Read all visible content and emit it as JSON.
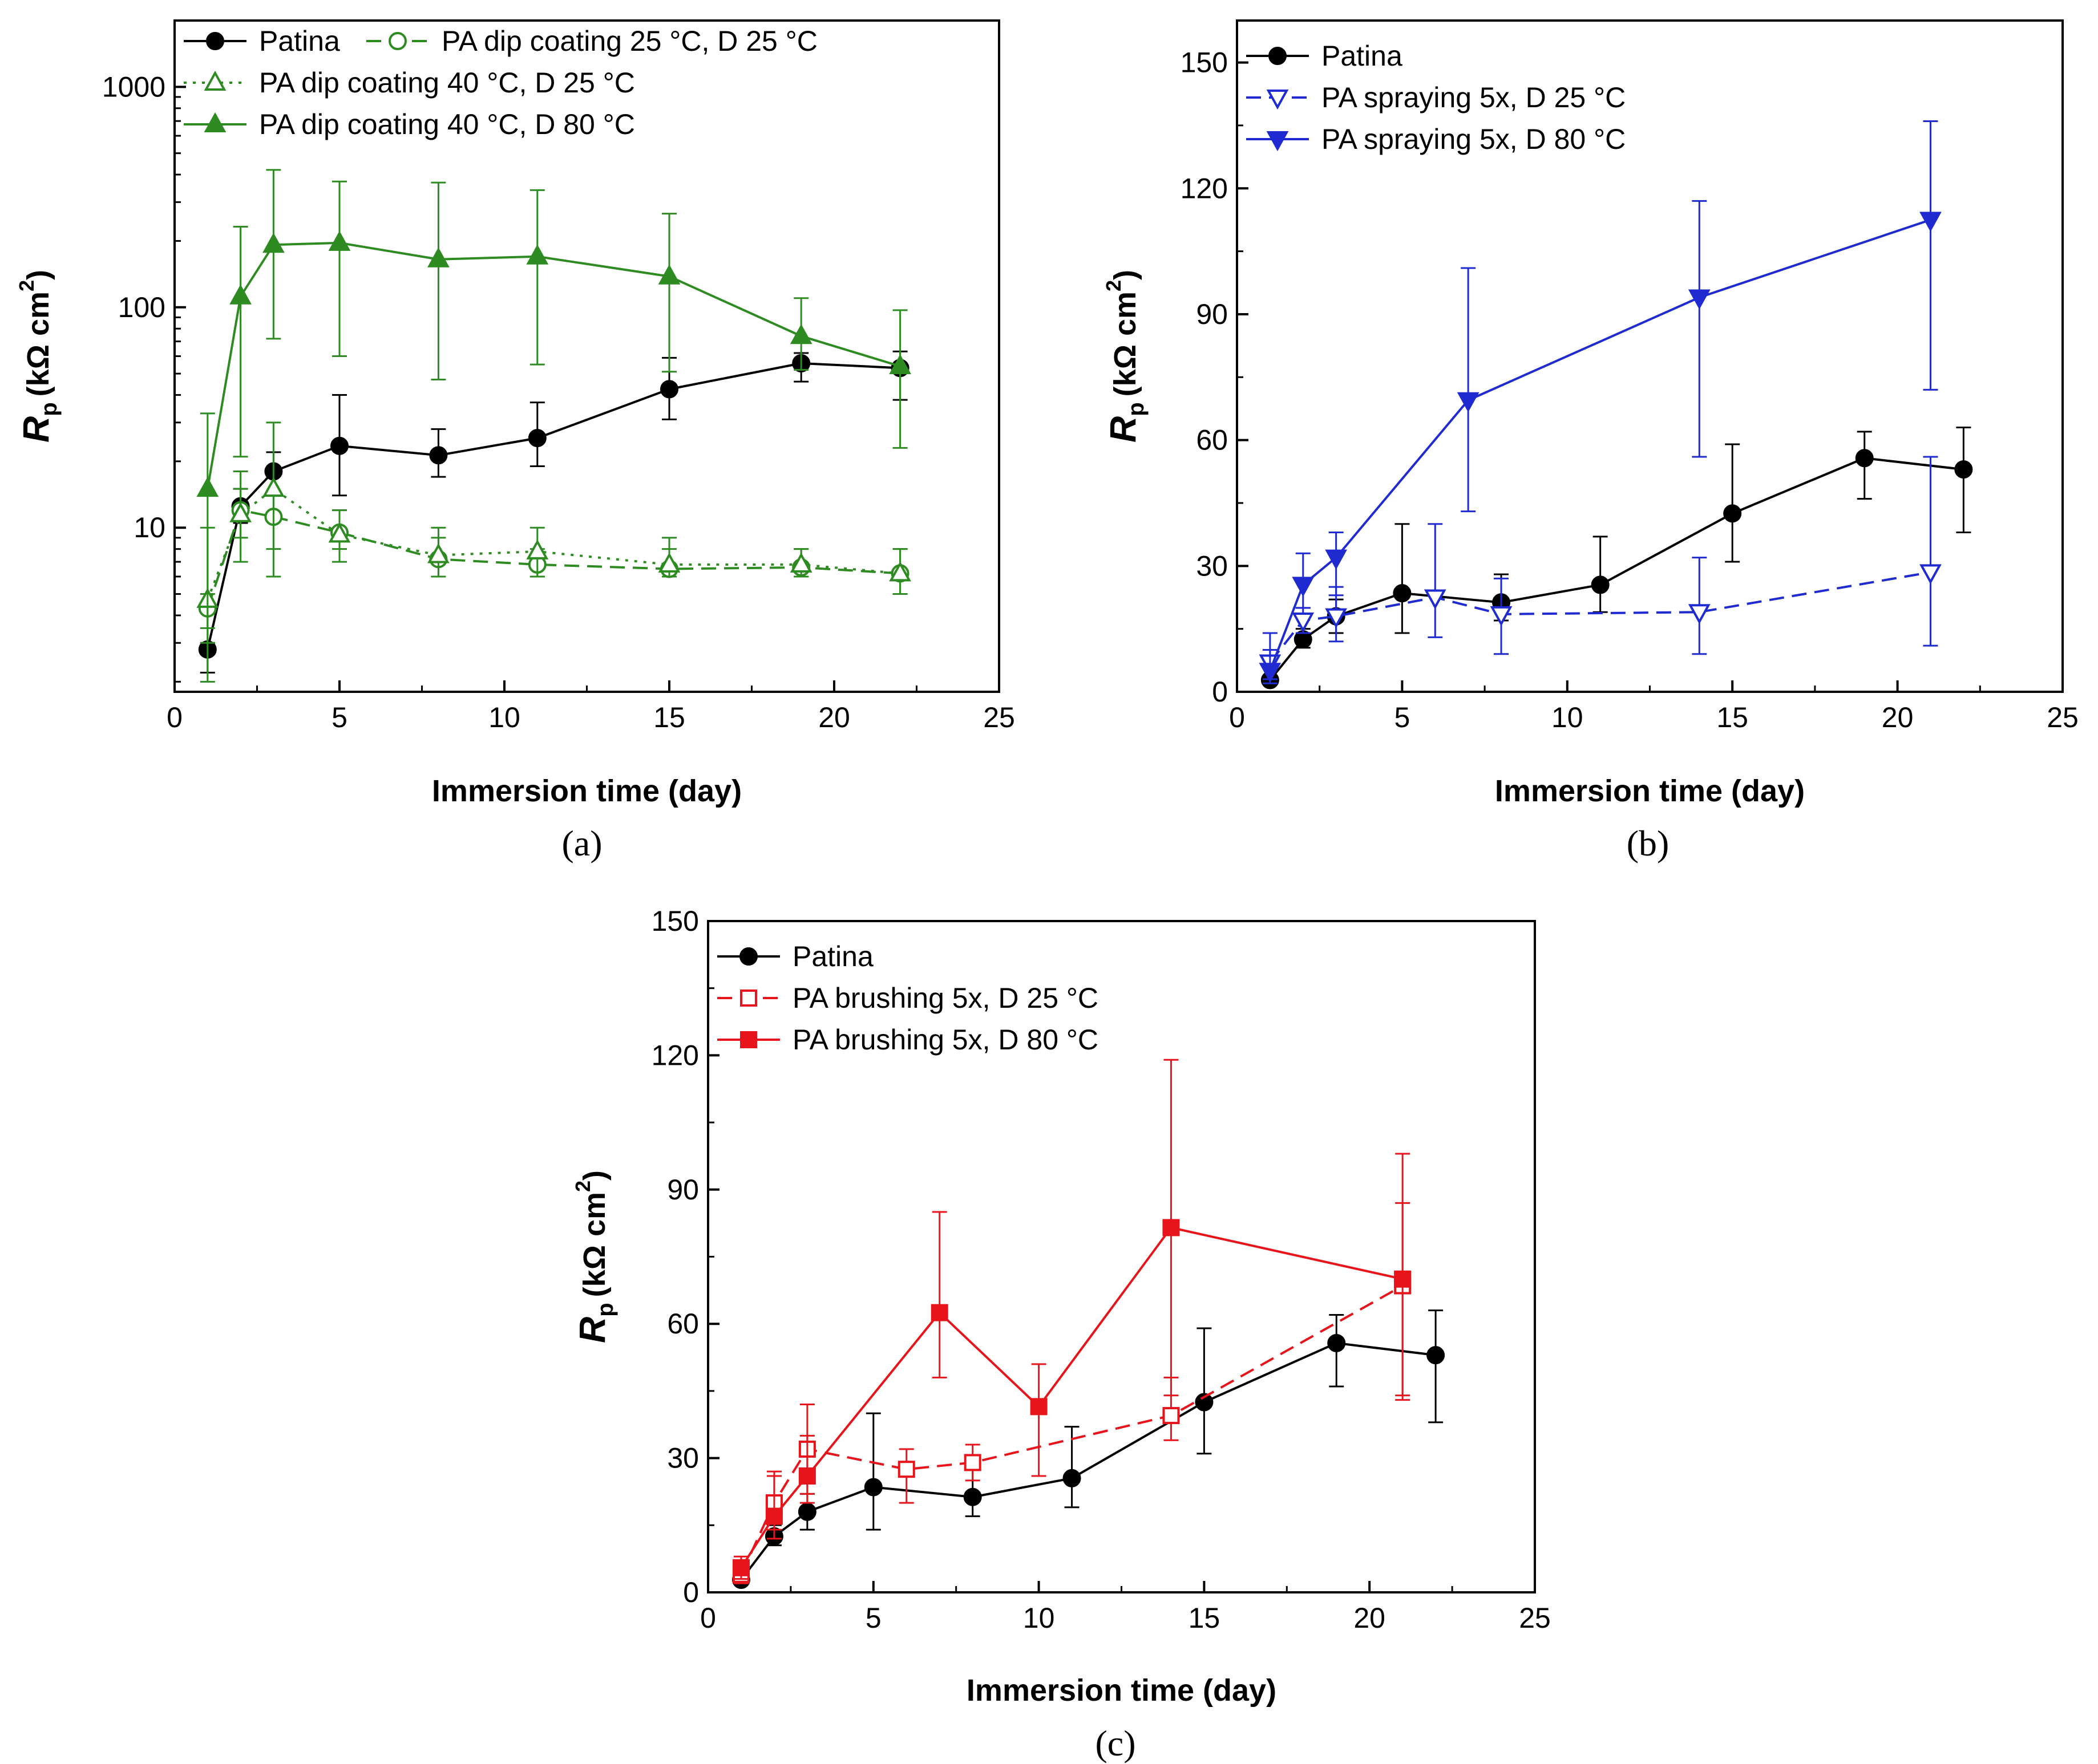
{
  "chart_data": [
    {
      "id": "a",
      "type": "line",
      "caption": "(a)",
      "xlabel": "Immersion time (day)",
      "ylabel_symbol": "R",
      "ylabel_subscript": "p",
      "ylabel_units": "(kΩ cm",
      "ylabel_sup": "2",
      "ylabel_close": ")",
      "yscale": "log",
      "xlim": [
        0,
        25
      ],
      "ylim": [
        1.8,
        2000
      ],
      "xticks": [
        0,
        5,
        10,
        15,
        20,
        25
      ],
      "xtick_labels": [
        "0",
        "5",
        "10",
        "15",
        "20",
        "25"
      ],
      "yticks": [
        10,
        100,
        1000
      ],
      "ytick_labels": [
        "10",
        "100",
        "1000"
      ],
      "legend_position": "top-left",
      "series": [
        {
          "name": "Patina",
          "color": "#000000",
          "marker": "circle",
          "filled": true,
          "dash": "solid",
          "x": [
            1,
            2,
            3,
            5,
            8,
            11,
            15,
            19,
            22
          ],
          "y": [
            2.8,
            12.5,
            18,
            23.5,
            21.3,
            25.5,
            42.5,
            55.7,
            53
          ],
          "err_low": [
            2.2,
            10.5,
            14,
            14,
            17,
            19,
            31,
            46,
            38
          ],
          "err_high": [
            3,
            15,
            22,
            40,
            28,
            37,
            59,
            62,
            63
          ]
        },
        {
          "name": "PA dip coating 25 °C, D 25 °C",
          "color": "#2e8b22",
          "marker": "circle",
          "filled": false,
          "dash": "dashed",
          "x": [
            1,
            2,
            3,
            5,
            8,
            11,
            15,
            19,
            22
          ],
          "y": [
            4.3,
            12,
            11.2,
            9.5,
            7.2,
            6.8,
            6.5,
            6.6,
            6.2
          ],
          "err_low": [
            3.5,
            9,
            8,
            8,
            6,
            6,
            6,
            6,
            5
          ],
          "err_high": [
            5,
            15,
            14,
            12,
            9,
            8,
            8,
            8,
            8
          ]
        },
        {
          "name": "PA dip coating 40 °C, D 25 °C",
          "color": "#2e8b22",
          "marker": "triangle-up",
          "filled": false,
          "dash": "dotted",
          "x": [
            1,
            2,
            3,
            5,
            8,
            11,
            15,
            19,
            22
          ],
          "y": [
            4.7,
            11.5,
            15,
            9.3,
            7.5,
            7.8,
            6.8,
            6.8,
            6.2
          ],
          "err_low": [
            2,
            7,
            6,
            7,
            6,
            6,
            6,
            6,
            5
          ],
          "err_high": [
            10,
            18,
            30,
            12,
            10,
            10,
            9,
            8,
            8
          ]
        },
        {
          "name": "PA dip coating 40 °C, D 80 °C",
          "color": "#2e8b22",
          "marker": "triangle-up",
          "filled": true,
          "dash": "solid",
          "x": [
            1,
            2,
            3,
            5,
            8,
            11,
            15,
            19,
            22
          ],
          "y": [
            15,
            112,
            192,
            196,
            165,
            170,
            138,
            74,
            54
          ],
          "err_low": [
            3,
            21,
            72,
            60,
            47,
            55,
            51,
            52,
            23
          ],
          "err_high": [
            33,
            232,
            420,
            372,
            368,
            340,
            266,
            110,
            97
          ]
        }
      ]
    },
    {
      "id": "b",
      "type": "line",
      "caption": "(b)",
      "xlabel": "Immersion time (day)",
      "ylabel_symbol": "R",
      "ylabel_subscript": "p",
      "ylabel_units": "(kΩ cm",
      "ylabel_sup": "2",
      "ylabel_close": ")",
      "yscale": "linear",
      "xlim": [
        0,
        25
      ],
      "ylim": [
        0,
        160
      ],
      "xticks": [
        0,
        5,
        10,
        15,
        20,
        25
      ],
      "xtick_labels": [
        "0",
        "5",
        "10",
        "15",
        "20",
        "25"
      ],
      "yticks": [
        0,
        30,
        60,
        90,
        120,
        150
      ],
      "ytick_labels": [
        "0",
        "30",
        "60",
        "90",
        "120",
        "150"
      ],
      "legend_position": "top-left",
      "series": [
        {
          "name": "Patina",
          "color": "#000000",
          "marker": "circle",
          "filled": true,
          "dash": "solid",
          "x": [
            1,
            2,
            3,
            5,
            8,
            11,
            15,
            19,
            22
          ],
          "y": [
            2.8,
            12.5,
            18,
            23.5,
            21.3,
            25.5,
            42.5,
            55.7,
            53
          ],
          "err_low": [
            2.2,
            10.5,
            14,
            14,
            17,
            19,
            31,
            46,
            38
          ],
          "err_high": [
            3,
            15,
            22,
            40,
            28,
            37,
            59,
            62,
            63
          ]
        },
        {
          "name": "PA spraying 5x, D 25 °C",
          "color": "#1f2bd1",
          "marker": "triangle-down",
          "filled": false,
          "dash": "dashed",
          "x": [
            1,
            2,
            3,
            6,
            8,
            14,
            21
          ],
          "y": [
            7,
            17,
            18,
            22.5,
            18.5,
            19,
            28.5
          ],
          "err_low": [
            3,
            14,
            12,
            13,
            9,
            9,
            11
          ],
          "err_high": [
            14,
            20,
            25,
            40,
            27,
            32,
            56
          ]
        },
        {
          "name": "PA spraying 5x, D 80 °C",
          "color": "#1f2bd1",
          "marker": "triangle-down",
          "filled": true,
          "dash": "solid",
          "x": [
            1,
            2,
            3,
            7,
            14,
            21
          ],
          "y": [
            5,
            25.5,
            32,
            69.5,
            94,
            112.5
          ],
          "err_low": [
            2,
            20,
            23,
            43,
            56,
            72
          ],
          "err_high": [
            10,
            33,
            38,
            101,
            117,
            136
          ]
        }
      ]
    },
    {
      "id": "c",
      "type": "line",
      "caption": "(c)",
      "xlabel": "Immersion time (day)",
      "ylabel_symbol": "R",
      "ylabel_subscript": "p",
      "ylabel_units": "(kΩ cm",
      "ylabel_sup": "2",
      "ylabel_close": ")",
      "yscale": "linear",
      "xlim": [
        0,
        25
      ],
      "ylim": [
        0,
        150
      ],
      "xticks": [
        0,
        5,
        10,
        15,
        20,
        25
      ],
      "xtick_labels": [
        "0",
        "5",
        "10",
        "15",
        "20",
        "25"
      ],
      "yticks": [
        0,
        30,
        60,
        90,
        120,
        150
      ],
      "ytick_labels": [
        "0",
        "30",
        "60",
        "90",
        "120",
        "150"
      ],
      "legend_position": "top-left",
      "series": [
        {
          "name": "Patina",
          "color": "#000000",
          "marker": "circle",
          "filled": true,
          "dash": "solid",
          "x": [
            1,
            2,
            3,
            5,
            8,
            11,
            15,
            19,
            22
          ],
          "y": [
            2.8,
            12.5,
            18,
            23.5,
            21.3,
            25.5,
            42.5,
            55.7,
            53
          ],
          "err_low": [
            2.2,
            10.5,
            14,
            14,
            17,
            19,
            31,
            46,
            38
          ],
          "err_high": [
            3,
            15,
            22,
            40,
            28,
            37,
            59,
            62,
            63
          ]
        },
        {
          "name": "PA brushing 5x, D 25 °C",
          "color": "#e8141b",
          "marker": "square",
          "filled": false,
          "dash": "dashed",
          "x": [
            1,
            2,
            3,
            6,
            8,
            14,
            21
          ],
          "y": [
            4,
            20,
            32,
            27.5,
            29,
            39.5,
            68.5
          ],
          "err_low": [
            2,
            14,
            22,
            20,
            25,
            34,
            44
          ],
          "err_high": [
            6,
            26,
            42,
            32,
            33,
            48,
            87
          ]
        },
        {
          "name": "PA brushing 5x, D 80 °C",
          "color": "#e8141b",
          "marker": "square",
          "filled": true,
          "dash": "solid",
          "x": [
            1,
            2,
            3,
            7,
            10,
            14,
            21
          ],
          "y": [
            5.5,
            17,
            26,
            62.5,
            41.5,
            81.5,
            70
          ],
          "err_low": [
            3,
            12,
            20,
            48,
            26,
            44,
            43
          ],
          "err_high": [
            8,
            27,
            35,
            85,
            51,
            119,
            98
          ]
        }
      ]
    }
  ]
}
